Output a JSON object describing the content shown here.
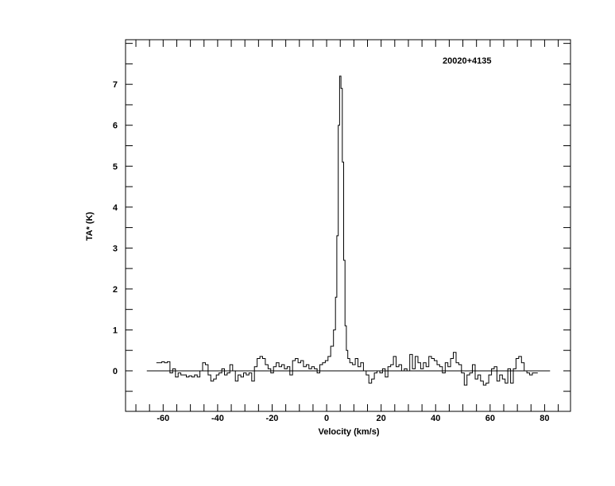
{
  "chart_data": {
    "type": "line",
    "style": "step",
    "title": "20020+4135",
    "xlabel": "Velocity (km/s)",
    "ylabel": "TA* (K)",
    "xlim": [
      -73.8,
      89.5
    ],
    "ylim": [
      -0.99,
      8.09
    ],
    "xticks": [
      -60,
      -40,
      -20,
      0,
      20,
      40,
      60,
      80
    ],
    "yticks": [
      0,
      1,
      2,
      3,
      4,
      5,
      6,
      7
    ],
    "x_minor_step": 5,
    "y_minor_step": 0.5,
    "baseline": {
      "y": 0,
      "x_range": [
        -66,
        82
      ]
    },
    "grid": false,
    "line_color": "#000000",
    "x": [
      -62,
      -61,
      -60,
      -59,
      -58,
      -57,
      -56,
      -55,
      -54,
      -53,
      -52,
      -51,
      -50,
      -49,
      -48,
      -47,
      -46,
      -45,
      -44,
      -43,
      -42,
      -41,
      -40,
      -39,
      -38,
      -37,
      -36,
      -35,
      -34,
      -33,
      -32,
      -31,
      -30,
      -29,
      -28,
      -27,
      -26,
      -25,
      -24,
      -23,
      -22,
      -21,
      -20,
      -19,
      -18,
      -17,
      -16,
      -15,
      -14,
      -13,
      -12,
      -11,
      -10,
      -9,
      -8,
      -7,
      -6,
      -5,
      -4,
      -3,
      -2,
      -1,
      0,
      1,
      2,
      3,
      3.5,
      4,
      4.5,
      5,
      5.5,
      6,
      6.5,
      7,
      7.5,
      8,
      9,
      10,
      11,
      12,
      13,
      14,
      15,
      16,
      17,
      18,
      19,
      20,
      21,
      22,
      23,
      24,
      25,
      26,
      27,
      28,
      29,
      30,
      31,
      32,
      33,
      34,
      35,
      36,
      37,
      38,
      39,
      40,
      41,
      42,
      43,
      44,
      45,
      46,
      47,
      48,
      49,
      50,
      51,
      52,
      53,
      54,
      55,
      56,
      57,
      58,
      59,
      60,
      61,
      62,
      63,
      64,
      65,
      66,
      67,
      68,
      69,
      70,
      71,
      72,
      73,
      74,
      75,
      76,
      77
    ],
    "y": [
      0.2,
      0.2,
      0.22,
      0.2,
      0.22,
      -0.05,
      0.05,
      -0.15,
      -0.05,
      -0.1,
      -0.1,
      -0.15,
      -0.12,
      -0.15,
      -0.1,
      -0.15,
      0.0,
      0.2,
      0.15,
      -0.1,
      -0.25,
      -0.2,
      -0.1,
      -0.05,
      0.05,
      -0.1,
      -0.05,
      0.15,
      0.0,
      -0.25,
      -0.1,
      -0.15,
      -0.05,
      -0.1,
      -0.05,
      -0.25,
      0.1,
      0.3,
      0.35,
      0.3,
      0.15,
      0.05,
      -0.05,
      0.1,
      0.2,
      0.1,
      0.15,
      0.05,
      0.1,
      -0.1,
      0.25,
      0.3,
      0.2,
      0.25,
      0.1,
      0.15,
      0.05,
      0.1,
      0.05,
      -0.05,
      0.15,
      0.2,
      0.25,
      0.35,
      0.6,
      1.0,
      1.8,
      3.3,
      6.0,
      7.2,
      6.9,
      5.1,
      2.7,
      1.1,
      0.5,
      0.3,
      0.2,
      0.15,
      0.3,
      0.1,
      0.2,
      0.0,
      -0.1,
      -0.3,
      -0.2,
      -0.05,
      0.0,
      -0.05,
      0.05,
      -0.15,
      0.1,
      0.15,
      0.35,
      0.1,
      0.15,
      0.0,
      0.05,
      0.0,
      0.4,
      0.05,
      0.35,
      0.2,
      0.05,
      0.2,
      0.1,
      0.35,
      0.3,
      0.25,
      0.15,
      0.1,
      -0.05,
      0.2,
      0.1,
      0.3,
      0.45,
      0.2,
      0.15,
      -0.05,
      -0.35,
      -0.1,
      -0.05,
      0.15,
      -0.2,
      -0.1,
      -0.25,
      -0.35,
      -0.3,
      -0.1,
      0.05,
      0.1,
      -0.25,
      -0.1,
      -0.2,
      -0.3,
      0.05,
      -0.3,
      0.05,
      0.3,
      0.35,
      0.2,
      0.0,
      -0.05,
      -0.1,
      -0.05,
      -0.05
    ]
  }
}
